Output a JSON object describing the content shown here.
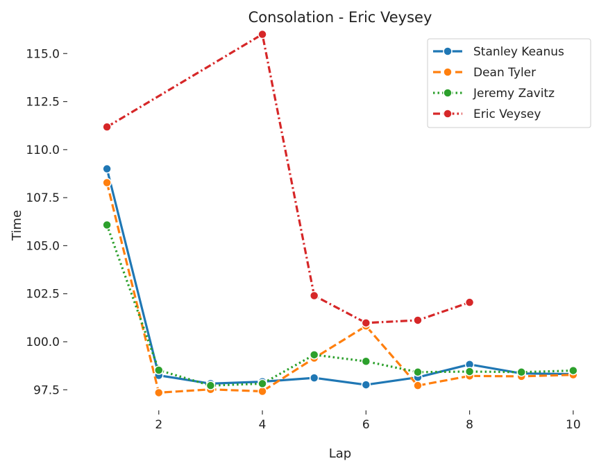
{
  "chart_data": {
    "type": "line",
    "title": "Consolation - Eric Veysey",
    "xlabel": "Lap",
    "ylabel": "Time",
    "xlim": [
      0.65,
      10.35
    ],
    "ylim": [
      96.5,
      116.2
    ],
    "xticks": [
      2,
      4,
      6,
      8,
      10
    ],
    "xtick_labels": [
      "2",
      "4",
      "6",
      "8",
      "10"
    ],
    "yticks": [
      97.5,
      100.0,
      102.5,
      105.0,
      107.5,
      110.0,
      112.5,
      115.0
    ],
    "ytick_labels": [
      "97.5",
      "100.0",
      "102.5",
      "105.0",
      "107.5",
      "110.0",
      "112.5",
      "115.0"
    ],
    "grid": false,
    "legend_position": "top-right",
    "series": [
      {
        "name": "Stanley Keanus",
        "color": "#1f77b4",
        "line_style": "solid",
        "x": [
          1,
          2,
          3,
          4,
          5,
          6,
          7,
          8,
          9,
          10
        ],
        "y": [
          109.0,
          98.25,
          97.82,
          97.92,
          98.12,
          97.76,
          98.15,
          98.82,
          98.35,
          98.32
        ]
      },
      {
        "name": "Dean Tyler",
        "color": "#ff7f0e",
        "line_style": "dashed",
        "x": [
          1,
          2,
          3,
          4,
          5,
          6,
          7,
          8,
          9,
          10
        ],
        "y": [
          108.28,
          97.35,
          97.52,
          97.42,
          99.15,
          100.82,
          97.72,
          98.22,
          98.2,
          98.28
        ]
      },
      {
        "name": "Jeremy Zavitz",
        "color": "#2ca02c",
        "line_style": "dotted",
        "x": [
          1,
          2,
          3,
          4,
          5,
          6,
          7,
          8,
          9,
          10
        ],
        "y": [
          106.08,
          98.52,
          97.72,
          97.82,
          99.32,
          98.98,
          98.42,
          98.45,
          98.42,
          98.5
        ]
      },
      {
        "name": "Eric Veysey",
        "color": "#d62728",
        "line_style": "dashdot",
        "x": [
          1,
          4,
          5,
          6,
          7,
          8
        ],
        "y": [
          111.18,
          116.0,
          102.4,
          100.98,
          101.12,
          102.05
        ]
      }
    ]
  }
}
